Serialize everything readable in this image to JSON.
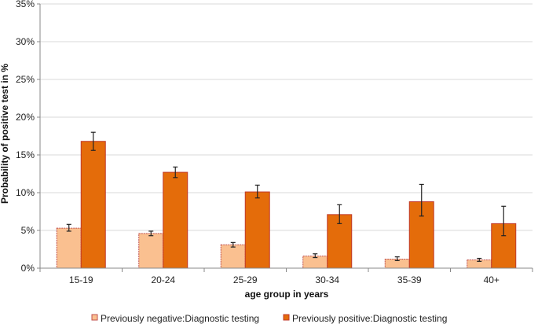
{
  "chart_data": {
    "type": "bar",
    "title": "",
    "xlabel": "age group in years",
    "ylabel": "Probability of  positive test in %",
    "ylim": [
      0,
      35
    ],
    "yticks": [
      0,
      5,
      10,
      15,
      20,
      25,
      30,
      35
    ],
    "ytick_labels": [
      "0%",
      "5%",
      "10%",
      "15%",
      "20%",
      "25%",
      "30%",
      "35%"
    ],
    "categories": [
      "15-19",
      "20-24",
      "25-29",
      "30-34",
      "35-39",
      "40+"
    ],
    "series": [
      {
        "name": "Previously negative:Diagnostic testing",
        "color": "#fac090",
        "border": "#c0504d",
        "values": [
          5.3,
          4.6,
          3.1,
          1.6,
          1.2,
          1.1
        ],
        "err_low": [
          4.9,
          4.3,
          2.8,
          1.4,
          1.0,
          0.9
        ],
        "err_high": [
          5.8,
          4.9,
          3.4,
          1.9,
          1.5,
          1.3
        ]
      },
      {
        "name": "Previously positive:Diagnostic testing",
        "color": "#e46c0a",
        "border": "#c0392b",
        "values": [
          16.8,
          12.7,
          10.1,
          7.1,
          8.8,
          5.9
        ],
        "err_low": [
          15.6,
          12.0,
          9.3,
          5.9,
          6.9,
          4.3
        ],
        "err_high": [
          18.0,
          13.4,
          11.0,
          8.4,
          11.1,
          8.2
        ]
      }
    ],
    "legend_position": "bottom",
    "grid": true
  }
}
